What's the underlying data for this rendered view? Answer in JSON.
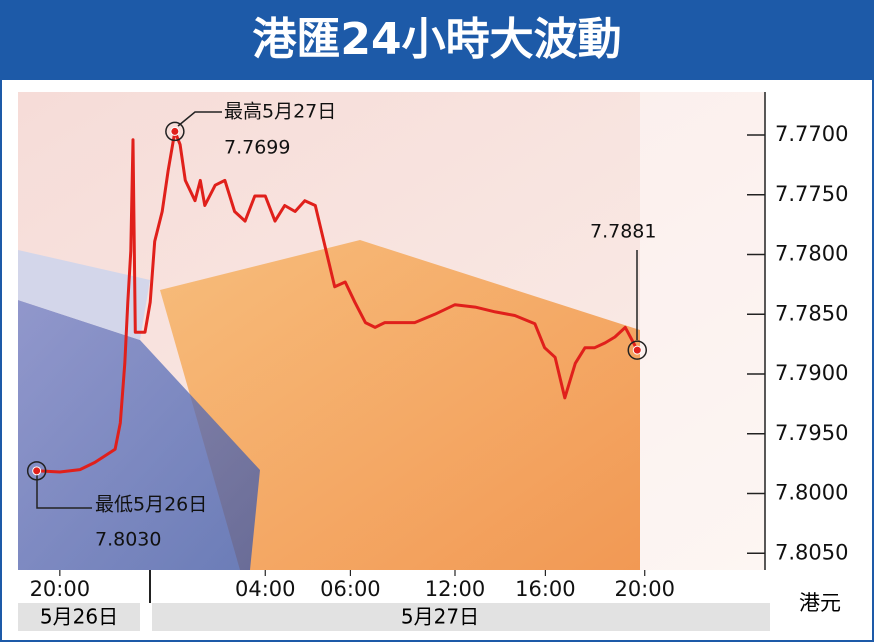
{
  "chart_data": {
    "type": "line",
    "title": "港匯24小時大波動",
    "x": [
      2.5,
      5.6,
      8.3,
      10.3,
      13.0,
      13.7,
      14.3,
      14.7,
      15.1,
      15.4,
      15.7,
      17.0,
      17.7,
      18.3,
      19.3,
      20.1,
      21.0,
      21.7,
      22.4,
      23.7,
      24.4,
      25.0,
      26.4,
      27.7,
      29.0,
      30.4,
      31.7,
      33.1,
      34.4,
      35.7,
      37.1,
      38.4,
      39.8,
      41.1,
      42.4,
      43.8,
      45.1,
      46.5,
      47.8,
      49.1,
      50.5,
      53.1,
      55.8,
      58.5,
      61.2,
      63.9,
      66.5,
      69.2,
      70.5,
      71.9,
      73.2,
      74.6,
      75.9,
      77.2,
      78.6,
      79.9,
      81.3,
      82.9
    ],
    "series": [
      {
        "color": "#e0201b",
        "values": [
          7.7981,
          7.7982,
          7.798,
          7.7974,
          7.7963,
          7.7941,
          7.7891,
          7.784,
          7.7797,
          7.7704,
          7.7865,
          7.7865,
          7.784,
          7.7789,
          7.7764,
          7.773,
          7.7697,
          7.7708,
          7.7738,
          7.7755,
          7.7738,
          7.7759,
          7.7742,
          7.7738,
          7.7764,
          7.7772,
          7.7751,
          7.7751,
          7.7772,
          7.7759,
          7.7764,
          7.7755,
          7.7759,
          7.7793,
          7.7827,
          7.7823,
          7.784,
          7.7857,
          7.7861,
          7.7857,
          7.7857,
          7.7857,
          7.785,
          7.7842,
          7.7844,
          7.7848,
          7.7851,
          7.7858,
          7.7878,
          7.7886,
          7.792,
          7.7891,
          7.7878,
          7.7878,
          7.7874,
          7.7869,
          7.7861,
          7.788
        ]
      }
    ],
    "xlim": [
      0,
      100
    ],
    "xticks": [
      {
        "value": 5.6,
        "label": "20:00"
      },
      {
        "value": 33.1,
        "label": "04:00"
      },
      {
        "value": 44.5,
        "label": "06:00"
      },
      {
        "value": 58.5,
        "label": "12:00"
      },
      {
        "value": 70.6,
        "label": "16:00"
      },
      {
        "value": 83.9,
        "label": "20:00"
      }
    ],
    "ylim": [
      7.8064,
      7.7664
    ],
    "yticks": [
      {
        "value": 7.77,
        "label": "7.7700"
      },
      {
        "value": 7.775,
        "label": "7.7750"
      },
      {
        "value": 7.78,
        "label": "7.7800"
      },
      {
        "value": 7.785,
        "label": "7.7850"
      },
      {
        "value": 7.79,
        "label": "7.7900"
      },
      {
        "value": 7.795,
        "label": "7.7950"
      },
      {
        "value": 7.8,
        "label": "7.8000"
      },
      {
        "value": 7.805,
        "label": "7.8050"
      }
    ],
    "annotations": [
      "最高5月27日",
      "7.7699",
      "7.7881",
      "最低5月26日",
      "7.8030"
    ],
    "date_labels": [
      "5月26日",
      "5月27日"
    ],
    "unit_label": "港元"
  }
}
